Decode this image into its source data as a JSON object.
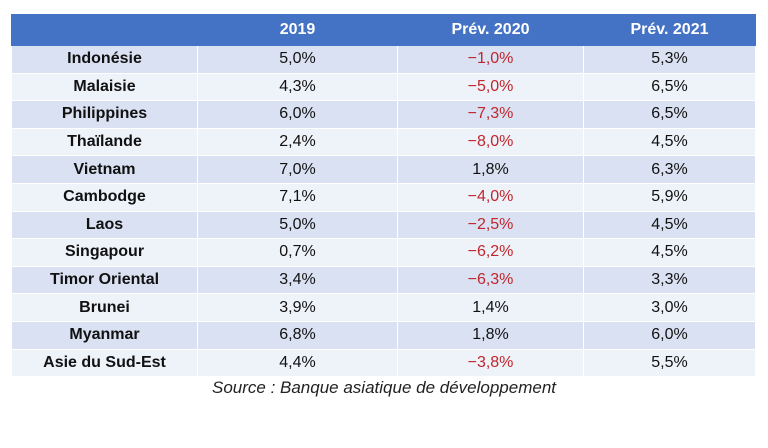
{
  "table": {
    "headers": [
      "",
      "2019",
      "Prév. 2020",
      "Prév. 2021"
    ],
    "rows": [
      {
        "country": "Indonésie",
        "y2019": "5,0%",
        "p2020": "−1,0%",
        "p2021": "5,3%"
      },
      {
        "country": "Malaisie",
        "y2019": "4,3%",
        "p2020": "−5,0%",
        "p2021": "6,5%"
      },
      {
        "country": "Philippines",
        "y2019": "6,0%",
        "p2020": "−7,3%",
        "p2021": "6,5%"
      },
      {
        "country": "Thaïlande",
        "y2019": "2,4%",
        "p2020": "−8,0%",
        "p2021": "4,5%"
      },
      {
        "country": "Vietnam",
        "y2019": "7,0%",
        "p2020": "1,8%",
        "p2021": "6,3%"
      },
      {
        "country": "Cambodge",
        "y2019": "7,1%",
        "p2020": "−4,0%",
        "p2021": "5,9%"
      },
      {
        "country": "Laos",
        "y2019": "5,0%",
        "p2020": "−2,5%",
        "p2021": "4,5%"
      },
      {
        "country": "Singapour",
        "y2019": "0,7%",
        "p2020": "−6,2%",
        "p2021": "4,5%"
      },
      {
        "country": "Timor Oriental",
        "y2019": "3,4%",
        "p2020": "−6,3%",
        "p2021": "3,3%"
      },
      {
        "country": "Brunei",
        "y2019": "3,9%",
        "p2020": "1,4%",
        "p2021": "3,0%"
      },
      {
        "country": "Myanmar",
        "y2019": "6,8%",
        "p2020": "1,8%",
        "p2021": "6,0%"
      },
      {
        "country": "Asie du Sud-Est",
        "y2019": "4,4%",
        "p2020": "−3,8%",
        "p2021": "5,5%"
      }
    ]
  },
  "source": "Source : Banque asiatique de développement",
  "colors": {
    "header_bg": "#4472c4",
    "row_odd": "#d9e1f2",
    "row_even": "#eef2f9",
    "negative": "#c0272d"
  }
}
